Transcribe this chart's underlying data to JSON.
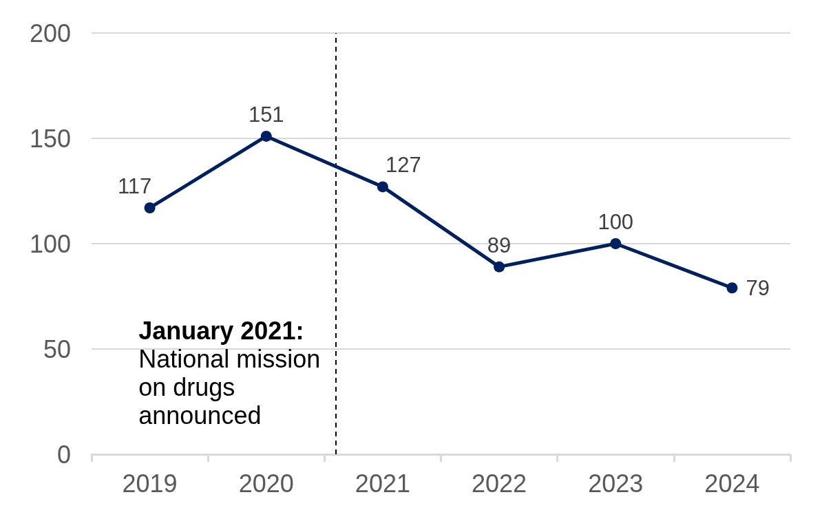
{
  "chart_data": {
    "type": "line",
    "x": [
      2019,
      2020,
      2021,
      2022,
      2023,
      2024
    ],
    "values": [
      117,
      151,
      127,
      89,
      100,
      79
    ],
    "color": "#002060",
    "data_labels": true,
    "marker": "circle",
    "line_style": "solid",
    "grid": "y",
    "xlim": [
      2018.5,
      2024.5
    ],
    "xticks": [
      {
        "value": 2018.5,
        "label": null
      },
      2019,
      {
        "value": 2019.5,
        "label": null
      },
      2020,
      {
        "value": 2020.5,
        "label": null
      },
      2021,
      {
        "value": 2021.5,
        "label": null
      },
      2022,
      {
        "value": 2022.5,
        "label": null
      },
      2023,
      {
        "value": 2023.5,
        "label": null
      },
      2024,
      {
        "value": 2024.5,
        "label": null
      }
    ],
    "ylim": [
      0,
      200
    ],
    "yticks": [
      0,
      50,
      100,
      150,
      200
    ],
    "ref_lines": [
      {
        "axis": "x",
        "value": 2020.6,
        "label": "January 2021:",
        "color": "#000000",
        "line_style": "dashed"
      }
    ],
    "annotations": [
      "National mission on drugs announced"
    ]
  }
}
